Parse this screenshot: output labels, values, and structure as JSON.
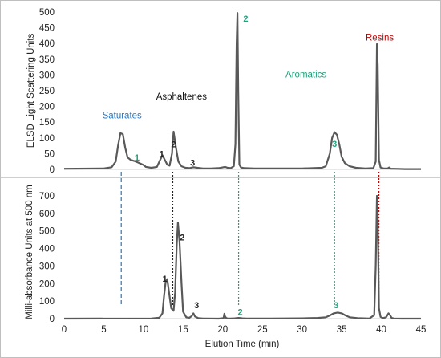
{
  "chart_data": [
    {
      "type": "line",
      "ylabel": "ELSD Light Scattering Units",
      "xlabel": "",
      "xlim": [
        0,
        45
      ],
      "ylim": [
        0,
        500
      ],
      "yticks": [
        0,
        50,
        100,
        150,
        200,
        250,
        300,
        350,
        400,
        450,
        500
      ],
      "xticks": [],
      "grid": false,
      "color": "#595959",
      "series": [
        {
          "x": [
            0,
            5,
            6,
            6.5,
            6.8,
            7.1,
            7.4,
            7.7,
            8,
            8.4,
            8.8,
            9.3,
            10,
            10.3,
            11,
            11.7,
            12.1,
            12.4,
            12.7,
            13,
            13.3,
            13.6,
            13.8,
            14.1,
            14.4,
            14.8,
            15.3,
            15.8,
            16.3,
            16.8,
            17.5,
            18.5,
            19.5,
            20.3,
            20.6,
            21,
            21.4,
            21.6,
            21.75,
            21.85,
            21.95,
            22.1,
            22.3,
            22.7,
            24,
            26,
            28,
            30,
            31.5,
            32.5,
            33,
            33.5,
            33.8,
            34.1,
            34.4,
            34.7,
            35,
            35.4,
            36,
            36.8,
            38,
            39,
            39.3,
            39.45,
            39.55,
            39.7,
            39.9,
            40.3,
            40.8,
            41,
            41.2,
            41.6,
            43,
            45
          ],
          "y": [
            2,
            3,
            7,
            25,
            75,
            115,
            112,
            70,
            38,
            30,
            27,
            22,
            14,
            8,
            5,
            8,
            30,
            45,
            30,
            15,
            12,
            50,
            120,
            70,
            25,
            10,
            5,
            4,
            7,
            5,
            3,
            3,
            4,
            8,
            5,
            4,
            10,
            80,
            400,
            497,
            250,
            15,
            6,
            4,
            3,
            3,
            3,
            3,
            4,
            5,
            10,
            50,
            100,
            118,
            110,
            80,
            40,
            20,
            10,
            5,
            3,
            4,
            25,
            398,
            330,
            30,
            6,
            3,
            3,
            6,
            2,
            2,
            1,
            1
          ]
        }
      ],
      "peak_labels": [
        {
          "text": "1",
          "x": 9.2,
          "y": 28,
          "color": "#1fa27a"
        },
        {
          "text": "1",
          "x": 12.3,
          "y": 40,
          "color": "#222222"
        },
        {
          "text": "2",
          "x": 13.8,
          "y": 70,
          "color": "#222222"
        },
        {
          "text": "3",
          "x": 16.2,
          "y": 12,
          "color": "#222222"
        },
        {
          "text": "2",
          "x": 22.9,
          "y": 470,
          "color": "#1fa27a"
        },
        {
          "text": "3",
          "x": 34.1,
          "y": 72,
          "color": "#1fa27a"
        }
      ],
      "class_labels": [
        {
          "text": "Saturates",
          "x": 7.3,
          "y": 162,
          "color": "#2e75b6"
        },
        {
          "text": "Asphaltenes",
          "x": 14.8,
          "y": 222,
          "color": "#111111"
        },
        {
          "text": "Aromatics",
          "x": 30.5,
          "y": 292,
          "color": "#1fa27a"
        },
        {
          "text": "Resins",
          "x": 39.8,
          "y": 410,
          "color": "#c00000"
        }
      ]
    },
    {
      "type": "line",
      "ylabel": "Milli-absorbance  Units at 500 nm",
      "xlabel": "Elution Time (min)",
      "xlim": [
        0,
        45
      ],
      "ylim": [
        0,
        700
      ],
      "yticks": [
        0,
        100,
        200,
        300,
        400,
        500,
        600,
        700
      ],
      "xticks": [
        0,
        5,
        10,
        15,
        20,
        25,
        30,
        35,
        40,
        45
      ],
      "grid": false,
      "color": "#595959",
      "series": [
        {
          "x": [
            0,
            11,
            12,
            12.4,
            12.6,
            12.8,
            13,
            13.2,
            13.5,
            13.8,
            14,
            14.2,
            14.35,
            14.55,
            14.8,
            15,
            15.4,
            15.8,
            16.1,
            16.3,
            16.5,
            16.9,
            17.5,
            19.5,
            20.1,
            20.2,
            20.3,
            20.45,
            20.6,
            21,
            21.5,
            22,
            22.5,
            23,
            26,
            30,
            32,
            33,
            33.5,
            34,
            34.5,
            35,
            35.5,
            36,
            37,
            38.5,
            39.1,
            39.3,
            39.45,
            39.55,
            39.7,
            39.9,
            40.2,
            40.6,
            40.9,
            41.1,
            41.3,
            41.6,
            42.5,
            45
          ],
          "y": [
            0,
            1,
            5,
            30,
            130,
            210,
            225,
            160,
            60,
            45,
            150,
            420,
            548,
            440,
            200,
            40,
            8,
            5,
            15,
            30,
            12,
            3,
            1,
            0,
            3,
            28,
            12,
            3,
            1,
            1,
            2,
            4,
            2,
            1,
            1,
            2,
            4,
            8,
            18,
            30,
            35,
            30,
            18,
            8,
            3,
            1,
            20,
            300,
            700,
            600,
            60,
            10,
            3,
            8,
            30,
            20,
            4,
            1,
            0,
            0
          ]
        }
      ],
      "peak_labels": [
        {
          "text": "1",
          "x": 12.7,
          "y": 210,
          "color": "#222222"
        },
        {
          "text": "2",
          "x": 14.9,
          "y": 445,
          "color": "#222222"
        },
        {
          "text": "3",
          "x": 16.7,
          "y": 60,
          "color": "#222222"
        },
        {
          "text": "2",
          "x": 22.2,
          "y": 20,
          "color": "#1fa27a"
        },
        {
          "text": "3",
          "x": 34.3,
          "y": 60,
          "color": "#1fa27a"
        }
      ]
    }
  ],
  "separators": [
    {
      "x": 7.2,
      "color": "#2e75b6",
      "dash": "long"
    },
    {
      "x": 13.7,
      "color": "#222222",
      "dash": "short"
    },
    {
      "x": 22.0,
      "color": "#1fa27a",
      "dash": "short"
    },
    {
      "x": 34.1,
      "color": "#1fa27a",
      "dash": "short"
    },
    {
      "x": 39.7,
      "color": "#c00000",
      "dash": "short"
    }
  ]
}
